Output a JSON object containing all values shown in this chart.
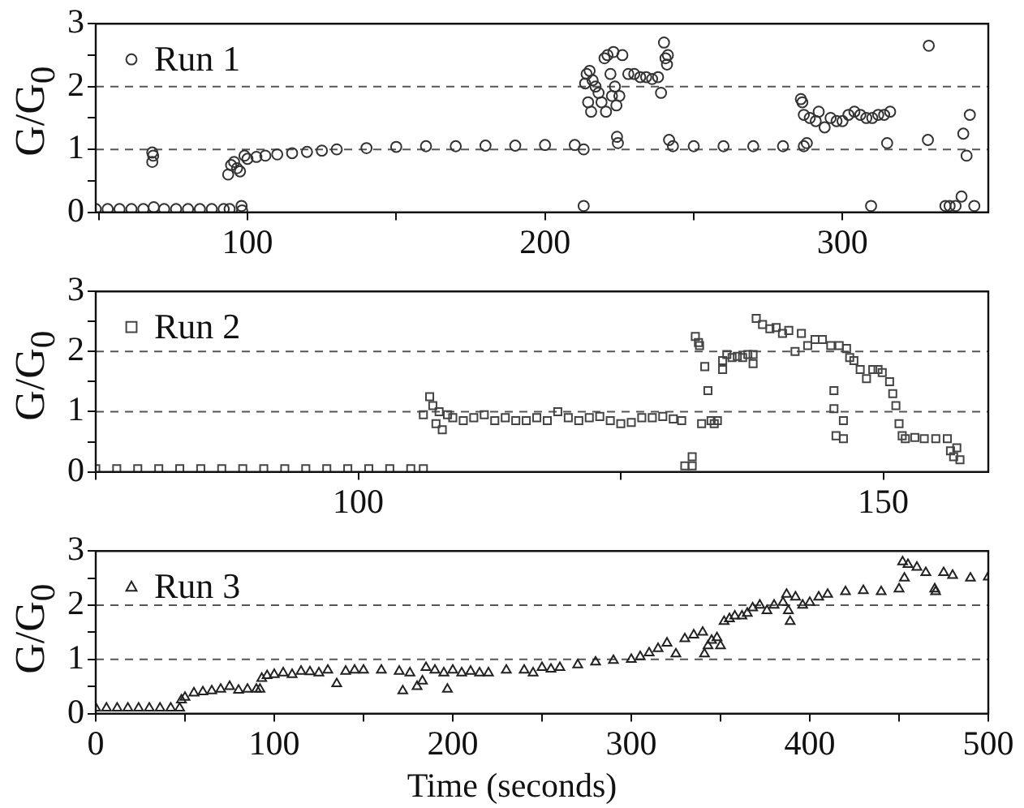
{
  "chart_data": [
    {
      "type": "scatter",
      "ylabel": "G/G$_{0}$",
      "marker": "circle",
      "legend": "top left",
      "x": [
        49,
        53,
        57,
        61,
        65,
        68,
        68.3,
        68,
        68.5,
        72,
        76,
        80,
        84,
        88,
        92,
        94,
        93.5,
        94.5,
        95.5,
        96.5,
        97.5,
        98,
        98.2,
        99,
        100,
        103,
        106,
        110,
        115,
        120,
        125,
        130,
        140,
        150,
        160,
        170,
        180,
        190,
        200,
        210,
        213,
        213,
        213.5,
        214,
        214.5,
        215,
        215.5,
        216,
        217,
        218,
        219,
        220,
        220.5,
        221,
        222,
        222.5,
        223,
        223.5,
        224,
        224.2,
        224.5,
        225,
        226,
        228,
        230,
        232,
        234,
        236,
        238,
        239,
        240,
        240.5,
        241,
        241.3,
        241.7,
        243,
        250,
        260,
        270,
        280,
        287,
        286,
        286.5,
        287,
        288,
        289,
        291,
        292,
        294,
        296,
        298,
        300,
        302,
        304,
        306,
        308,
        309.6,
        310,
        312,
        314,
        315,
        316,
        328.7,
        329,
        334.6,
        336,
        338,
        340,
        340.6,
        341.7,
        342.8,
        344.3
      ],
      "series": [
        {
          "name": "Run 1",
          "color": "#333333",
          "values": [
            0.05,
            0.05,
            0.05,
            0.05,
            0.05,
            0.95,
            0.9,
            0.8,
            0.08,
            0.05,
            0.05,
            0.05,
            0.05,
            0.05,
            0.05,
            0.05,
            0.6,
            0.75,
            0.8,
            0.7,
            0.65,
            0.1,
            0.03,
            0.9,
            0.85,
            0.88,
            0.9,
            0.92,
            0.94,
            0.96,
            0.98,
            1.0,
            1.02,
            1.04,
            1.05,
            1.05,
            1.06,
            1.06,
            1.07,
            1.07,
            1.0,
            0.1,
            2.05,
            2.2,
            1.75,
            2.25,
            1.6,
            2.1,
            2.0,
            1.9,
            1.75,
            2.45,
            1.6,
            2.5,
            2.2,
            1.85,
            2.55,
            2.0,
            1.7,
            1.2,
            1.1,
            1.85,
            2.5,
            2.2,
            2.2,
            2.15,
            2.15,
            2.12,
            2.15,
            1.9,
            2.7,
            2.45,
            2.35,
            2.5,
            1.15,
            1.05,
            1.05,
            1.05,
            1.05,
            1.05,
            1.05,
            1.8,
            1.75,
            1.55,
            1.1,
            1.5,
            1.45,
            1.6,
            1.35,
            1.5,
            1.45,
            1.45,
            1.55,
            1.6,
            1.55,
            1.5,
            0.1,
            1.5,
            1.55,
            1.55,
            1.1,
            1.6,
            1.15,
            2.65,
            0.1,
            0.1,
            0.1,
            0.25,
            1.25,
            0.9,
            1.55,
            0.1
          ]
        }
      ],
      "xlim": [
        49,
        349
      ],
      "xticks": [
        {
          "value": 50,
          "label": null
        },
        100,
        {
          "value": 150,
          "label": null
        },
        200,
        {
          "value": 250,
          "label": null
        },
        300
      ],
      "ylim": [
        0,
        3
      ],
      "yticks": [
        0,
        {
          "value": 0.5,
          "label": null
        },
        1,
        {
          "value": 1.5,
          "label": null
        },
        2,
        {
          "value": 2.5,
          "label": null
        },
        3
      ],
      "ref_lines": [
        {
          "axis": "y",
          "value": 1,
          "line_style": "dashed",
          "color": "#555555"
        },
        {
          "axis": "y",
          "value": 2,
          "line_style": "dashed",
          "color": "#555555"
        }
      ]
    },
    {
      "type": "scatter",
      "ylabel": "G/G$_{0}$",
      "marker": "square",
      "legend": "top left",
      "x": [
        75,
        77,
        79,
        81,
        83,
        85,
        87,
        89,
        91,
        93,
        95,
        97,
        99,
        101,
        103,
        105,
        106.2,
        106.2,
        106.8,
        107.1,
        107.4,
        107.7,
        108,
        108.5,
        109,
        110,
        111,
        112,
        113,
        114,
        115,
        116,
        117,
        118,
        119,
        120,
        121,
        122,
        123,
        124,
        125,
        126,
        127,
        128,
        129,
        130,
        130.8,
        131.1,
        131.8,
        131.8,
        132.1,
        132.4,
        132.5,
        132.7,
        133,
        133.3,
        133.6,
        133.9,
        134.2,
        134.7,
        134.7,
        135.1,
        135.6,
        136.1,
        136.6,
        137.1,
        137.6,
        137.6,
        137.9,
        138.5,
        139.2,
        139.8,
        140.4,
        141,
        141.6,
        142.2,
        142.8,
        143.5,
        144.2,
        145,
        145.3,
        145.3,
        145.5,
        145.8,
        146.2,
        146.2,
        146.5,
        146.8,
        147.2,
        147.8,
        148.4,
        149,
        149.5,
        149.9,
        150.6,
        150.9,
        151.2,
        151.5,
        151.8,
        152.1,
        153,
        153.9,
        155,
        156.1,
        156.4,
        156.7,
        157,
        157.3
      ],
      "series": [
        {
          "name": "Run 2",
          "color": "#444444",
          "values": [
            0.05,
            0.05,
            0.05,
            0.05,
            0.05,
            0.05,
            0.05,
            0.05,
            0.05,
            0.05,
            0.05,
            0.05,
            0.05,
            0.05,
            0.05,
            0.05,
            0.05,
            0.95,
            1.25,
            1.1,
            0.8,
            1.0,
            0.7,
            0.95,
            0.9,
            0.85,
            0.9,
            0.95,
            0.85,
            0.9,
            0.85,
            0.85,
            0.9,
            0.85,
            1.0,
            0.9,
            0.85,
            0.9,
            0.92,
            0.85,
            0.8,
            0.82,
            0.9,
            0.9,
            0.92,
            0.88,
            0.85,
            0.1,
            0.25,
            0.1,
            2.25,
            2.15,
            2.1,
            0.8,
            1.75,
            1.35,
            0.85,
            0.8,
            0.85,
            1.85,
            1.7,
            1.95,
            1.9,
            1.92,
            1.9,
            1.95,
            1.8,
            1.95,
            2.55,
            2.45,
            2.38,
            2.4,
            2.3,
            2.35,
            2.0,
            2.3,
            2.1,
            2.2,
            2.2,
            2.1,
            1.35,
            1.05,
            0.6,
            2.1,
            0.55,
            0.85,
            2.05,
            1.9,
            1.85,
            1.7,
            1.55,
            1.7,
            1.7,
            1.65,
            1.5,
            1.3,
            1.1,
            0.8,
            0.6,
            0.55,
            0.57,
            0.55,
            0.55,
            0.55,
            0.35,
            0.25,
            0.4,
            0.2
          ]
        }
      ],
      "xlim": [
        75,
        160
      ],
      "xticks": [
        {
          "value": 75,
          "label": null
        },
        100,
        {
          "value": 125,
          "label": null
        },
        150
      ],
      "ylim": [
        0,
        3
      ],
      "yticks": [
        0,
        {
          "value": 0.5,
          "label": null
        },
        1,
        {
          "value": 1.5,
          "label": null
        },
        2,
        {
          "value": 2.5,
          "label": null
        },
        3
      ],
      "ref_lines": [
        {
          "axis": "y",
          "value": 1,
          "line_style": "dashed",
          "color": "#555555"
        },
        {
          "axis": "y",
          "value": 2,
          "line_style": "dashed",
          "color": "#555555"
        }
      ]
    },
    {
      "type": "scatter",
      "xlabel": "Time (seconds)",
      "ylabel": "G/G$_{0}$",
      "marker": "triangle",
      "legend": "top left",
      "x": [
        0,
        6,
        12,
        18,
        24,
        30,
        36,
        42,
        47,
        48,
        50,
        55,
        60,
        65,
        70,
        75,
        80,
        85,
        90,
        92,
        93,
        96,
        100,
        105,
        110,
        115,
        120,
        125,
        130,
        135,
        140,
        145,
        150,
        160,
        170,
        172,
        176,
        180,
        183,
        185,
        190,
        195,
        197,
        200,
        205,
        210,
        215,
        220,
        230,
        240,
        245,
        250,
        255,
        260,
        270,
        280,
        290,
        300,
        305,
        310,
        315,
        320,
        325,
        330,
        335,
        340,
        341,
        343,
        345,
        348,
        350,
        352,
        355,
        358,
        362,
        365,
        368,
        372,
        376,
        380,
        385,
        387,
        388,
        389,
        392,
        396,
        400,
        405,
        410,
        420,
        430,
        440,
        450,
        452,
        453,
        455,
        460,
        465,
        470,
        470.5,
        475,
        480,
        490,
        500
      ],
      "series": [
        {
          "name": "Run 3",
          "color": "#222222",
          "values": [
            0.1,
            0.1,
            0.1,
            0.1,
            0.1,
            0.1,
            0.1,
            0.1,
            0.1,
            0.25,
            0.3,
            0.38,
            0.4,
            0.42,
            0.45,
            0.5,
            0.43,
            0.45,
            0.45,
            0.45,
            0.65,
            0.7,
            0.72,
            0.75,
            0.72,
            0.78,
            0.77,
            0.75,
            0.8,
            0.55,
            0.78,
            0.8,
            0.8,
            0.8,
            0.78,
            0.42,
            0.75,
            0.5,
            0.6,
            0.85,
            0.8,
            0.75,
            0.45,
            0.8,
            0.75,
            0.78,
            0.75,
            0.75,
            0.8,
            0.8,
            0.75,
            0.85,
            0.82,
            0.85,
            0.9,
            0.95,
            0.98,
            1.0,
            1.05,
            1.12,
            1.2,
            1.3,
            1.1,
            1.38,
            1.45,
            1.5,
            1.1,
            1.25,
            1.35,
            1.4,
            1.25,
            1.7,
            1.75,
            1.8,
            1.8,
            1.85,
            1.95,
            2.0,
            1.9,
            2.0,
            2.05,
            2.2,
            1.9,
            1.7,
            2.15,
            2.0,
            2.05,
            2.15,
            2.2,
            2.25,
            2.27,
            2.25,
            2.3,
            2.8,
            2.5,
            2.75,
            2.7,
            2.6,
            2.3,
            2.25,
            2.6,
            2.55,
            2.5,
            2.52
          ]
        }
      ],
      "xlim": [
        0,
        500
      ],
      "xticks": [
        0,
        {
          "value": 50,
          "label": null
        },
        100,
        {
          "value": 150,
          "label": null
        },
        200,
        {
          "value": 250,
          "label": null
        },
        300,
        {
          "value": 350,
          "label": null
        },
        400,
        {
          "value": 450,
          "label": null
        },
        500
      ],
      "ylim": [
        0,
        3
      ],
      "yticks": [
        0,
        {
          "value": 0.5,
          "label": null
        },
        1,
        {
          "value": 1.5,
          "label": null
        },
        2,
        {
          "value": 2.5,
          "label": null
        },
        3
      ],
      "ref_lines": [
        {
          "axis": "y",
          "value": 1,
          "line_style": "dashed",
          "color": "#555555"
        },
        {
          "axis": "y",
          "value": 2,
          "line_style": "dashed",
          "color": "#555555"
        }
      ]
    }
  ]
}
